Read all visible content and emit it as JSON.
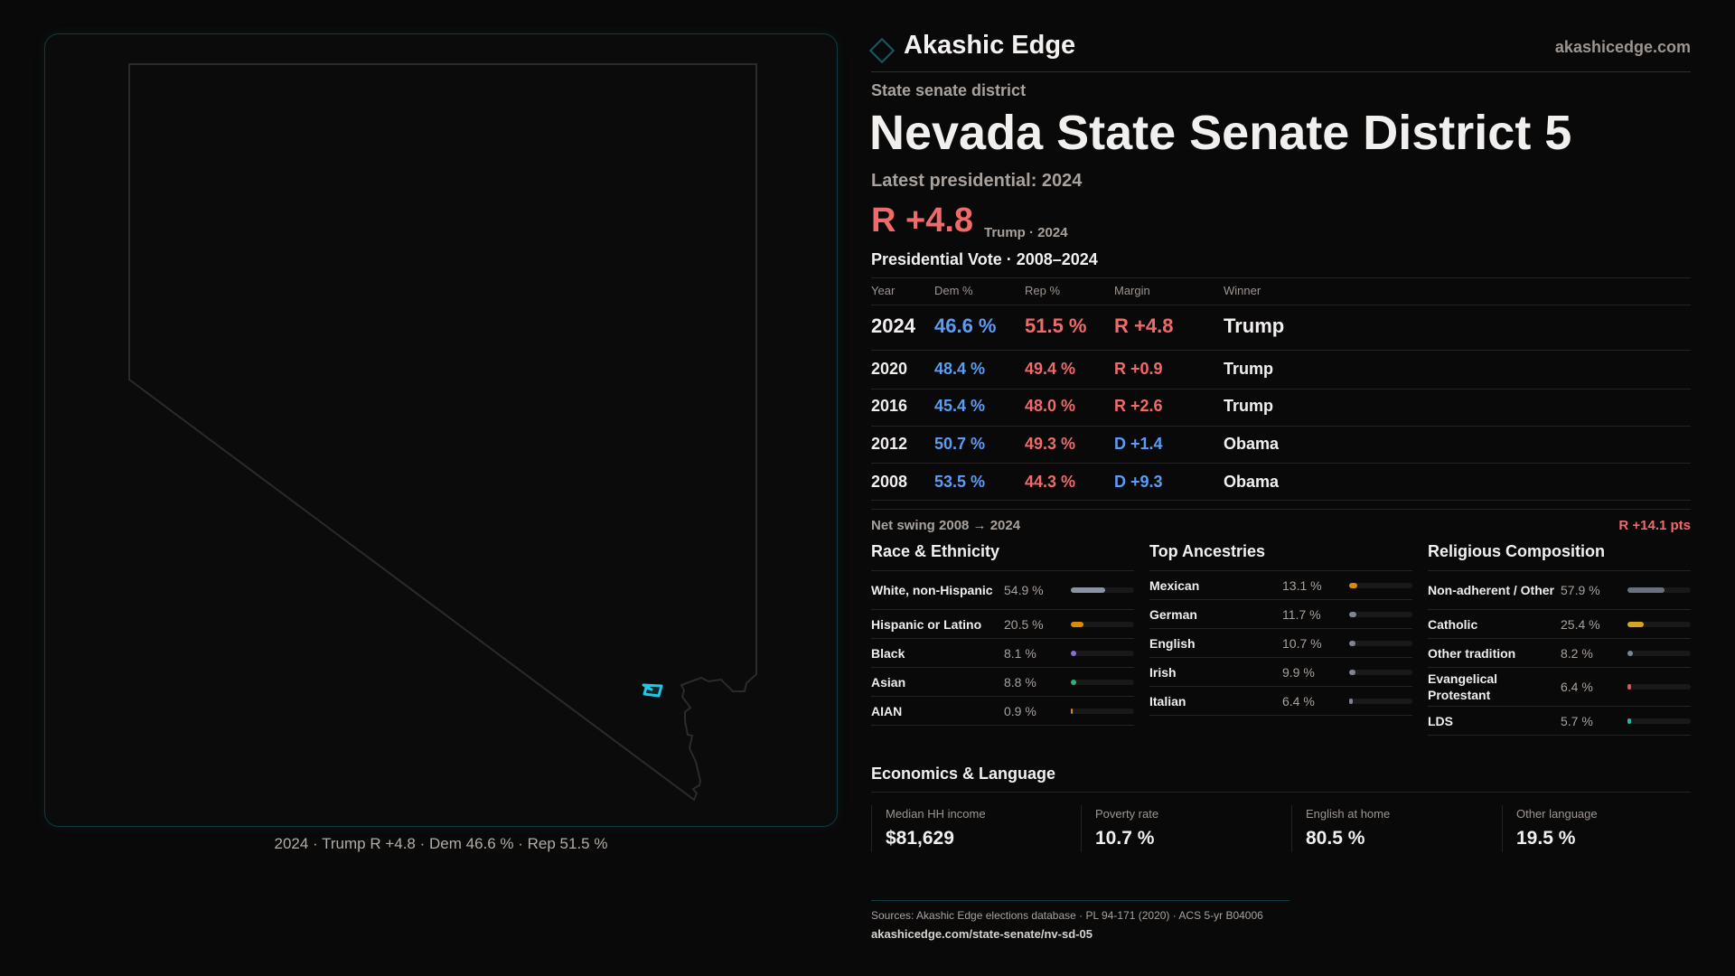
{
  "brand": {
    "name": "Akashic Edge",
    "site": "akashicedge.com"
  },
  "map": {
    "caption": "2024 · Trump R +4.8 · Dem 46.6 % · Rep 51.5 %",
    "highlight_color": "#1ec8e6"
  },
  "district": {
    "kind": "State senate district",
    "title": "Nevada State Senate District 5",
    "latest": "Latest presidential: 2024",
    "margin": "R +4.8",
    "margin_sub": "Trump · 2024"
  },
  "pres": {
    "title": "Presidential Vote · 2008–2024",
    "headers": [
      "Year",
      "Dem %",
      "Rep %",
      "Margin",
      "Winner"
    ],
    "rows": [
      {
        "year": "2024",
        "dem": "46.6 %",
        "rep": "51.5 %",
        "margin": "R +4.8",
        "party": "R",
        "winner": "Trump"
      },
      {
        "year": "2020",
        "dem": "48.4 %",
        "rep": "49.4 %",
        "margin": "R +0.9",
        "party": "R",
        "winner": "Trump"
      },
      {
        "year": "2016",
        "dem": "45.4 %",
        "rep": "48.0 %",
        "margin": "R +2.6",
        "party": "R",
        "winner": "Trump"
      },
      {
        "year": "2012",
        "dem": "50.7 %",
        "rep": "49.3 %",
        "margin": "D +1.4",
        "party": "D",
        "winner": "Obama"
      },
      {
        "year": "2008",
        "dem": "53.5 %",
        "rep": "44.3 %",
        "margin": "D +9.3",
        "party": "D",
        "winner": "Obama"
      }
    ],
    "swing_label": "Net swing 2008 → 2024",
    "swing_value": "R +14.1 pts"
  },
  "demographics": [
    {
      "title": "Race & Ethnicity",
      "rows": [
        {
          "label": "White, non-Hispanic",
          "value": "54.9 %",
          "pct": 54.9,
          "color": "#8a93a3",
          "tall": true
        },
        {
          "label": "Hispanic or Latino",
          "value": "20.5 %",
          "pct": 20.5,
          "color": "#d98a0b"
        },
        {
          "label": "Black",
          "value": "8.1 %",
          "pct": 8.1,
          "color": "#8b6fd6"
        },
        {
          "label": "Asian",
          "value": "8.8 %",
          "pct": 8.8,
          "color": "#2fb37a"
        },
        {
          "label": "AIAN",
          "value": "0.9 %",
          "pct": 0.9,
          "color": "#d98a0b"
        }
      ]
    },
    {
      "title": "Top Ancestries",
      "rows": [
        {
          "label": "Mexican",
          "value": "13.1 %",
          "pct": 13.1,
          "color": "#d98a0b"
        },
        {
          "label": "German",
          "value": "11.7 %",
          "pct": 11.7,
          "color": "#7d8594"
        },
        {
          "label": "English",
          "value": "10.7 %",
          "pct": 10.7,
          "color": "#7d8594"
        },
        {
          "label": "Irish",
          "value": "9.9 %",
          "pct": 9.9,
          "color": "#7d8594"
        },
        {
          "label": "Italian",
          "value": "6.4 %",
          "pct": 6.4,
          "color": "#7d8594"
        }
      ]
    },
    {
      "title": "Religious Composition",
      "rows": [
        {
          "label": "Non-adherent / Other",
          "value": "57.9 %",
          "pct": 57.9,
          "color": "#6b7080",
          "tall": true
        },
        {
          "label": "Catholic",
          "value": "25.4 %",
          "pct": 25.4,
          "color": "#d6a520"
        },
        {
          "label": "Other tradition",
          "value": "8.2 %",
          "pct": 8.2,
          "color": "#7d8594"
        },
        {
          "label": "Evangelical Protestant",
          "value": "6.4 %",
          "pct": 6.4,
          "color": "#d9575a",
          "tall": true
        },
        {
          "label": "LDS",
          "value": "5.7 %",
          "pct": 5.7,
          "color": "#22b5a8"
        }
      ]
    }
  ],
  "economics": {
    "title": "Economics & Language",
    "cards": [
      {
        "label": "Median HH income",
        "value": "$81,629"
      },
      {
        "label": "Poverty rate",
        "value": "10.7 %"
      },
      {
        "label": "English at home",
        "value": "80.5 %"
      },
      {
        "label": "Other language",
        "value": "19.5 %"
      }
    ]
  },
  "footer": {
    "sources": "Sources: Akashic Edge elections database · PL 94-171 (2020) · ACS 5-yr B04006",
    "url": "akashicedge.com/state-senate/nv-sd-05"
  }
}
